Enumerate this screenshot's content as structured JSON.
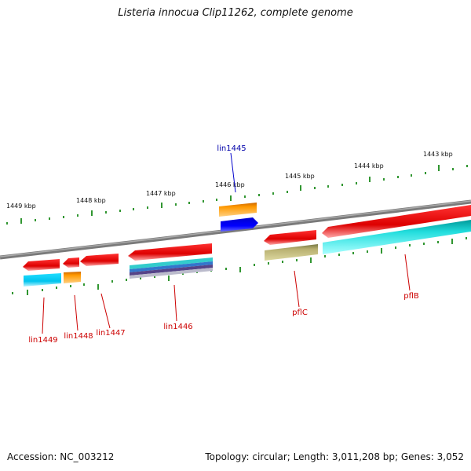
{
  "title": "Listeria innocua Clip11262, complete genome",
  "footer": {
    "accession": "Accession: NC_003212",
    "topology": "Topology: circular; Length: 3,011,208 bp; Genes: 3,052"
  },
  "kbp_labels": [
    "1449 kbp",
    "1448 kbp",
    "1447 kbp",
    "1446 kbp",
    "1445 kbp",
    "1444 kbp",
    "1443 kbp"
  ],
  "genes": [
    {
      "name": "lin1449",
      "color": "#cc0000"
    },
    {
      "name": "lin1448",
      "color": "#cc0000"
    },
    {
      "name": "lin1447",
      "color": "#cc0000"
    },
    {
      "name": "lin1446",
      "color": "#cc0000"
    },
    {
      "name": "lin1445",
      "color": "#0000aa"
    },
    {
      "name": "pflC",
      "color": "#cc0000"
    },
    {
      "name": "pflB",
      "color": "#cc0000"
    }
  ],
  "colors": {
    "backbone": "#808080",
    "ticks": "#1a8a1a",
    "gene_red": "#ee1111",
    "orange": "#ff9900",
    "blue": "#0000ee",
    "cyan": "#00ccee",
    "khaki": "#bdb76b",
    "purple": "#554488"
  }
}
